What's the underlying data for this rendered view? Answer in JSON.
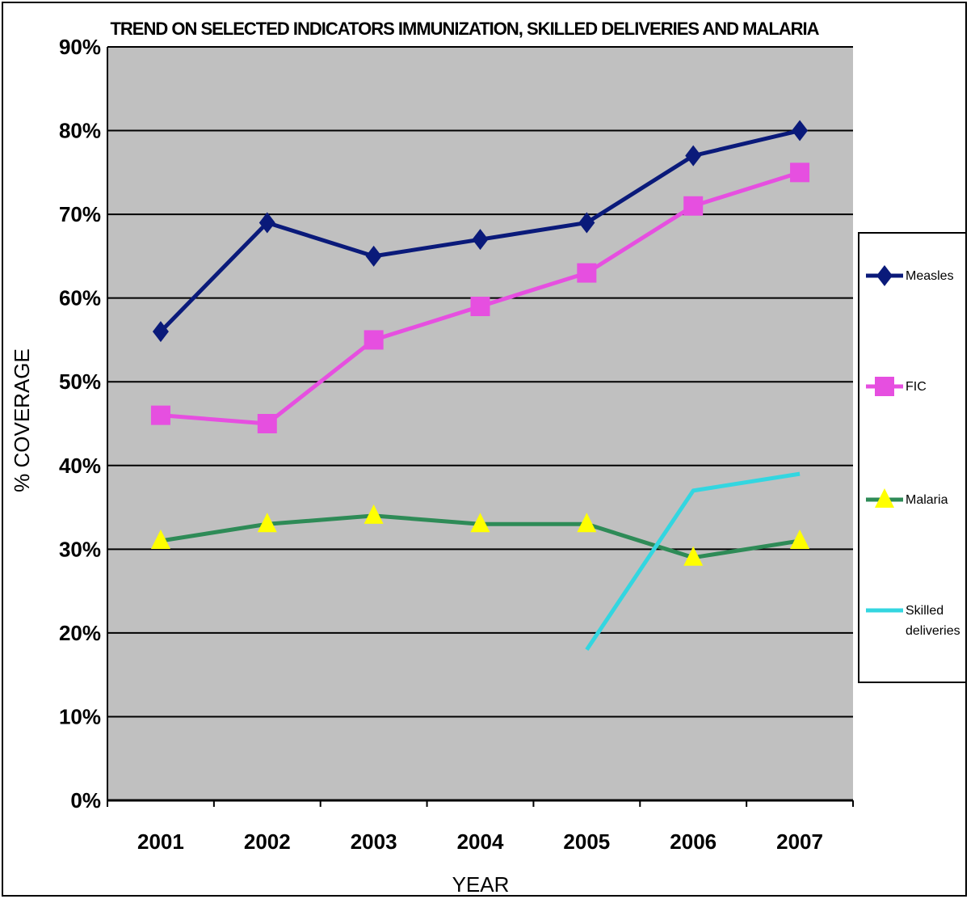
{
  "chart_data": {
    "type": "line",
    "title": "TREND ON SELECTED INDICATORS IMMUNIZATION, SKILLED DELIVERIES AND MALARIA",
    "xlabel": "YEAR",
    "ylabel": "% COVERAGE",
    "categories": [
      "2001",
      "2002",
      "2003",
      "2004",
      "2005",
      "2006",
      "2007"
    ],
    "y_ticks": [
      "0%",
      "10%",
      "20%",
      "30%",
      "40%",
      "50%",
      "60%",
      "70%",
      "80%",
      "90%"
    ],
    "ylim": [
      0,
      90
    ],
    "grid": "horizontal",
    "legend_position": "right",
    "plot_background": "#c0c0c0",
    "series": [
      {
        "name": "Measles",
        "color": "#0a1a7a",
        "marker": "diamond",
        "values": [
          56,
          69,
          65,
          67,
          69,
          77,
          80
        ]
      },
      {
        "name": "FIC",
        "color": "#e64fe0",
        "marker": "square",
        "values": [
          46,
          45,
          55,
          59,
          63,
          71,
          75
        ]
      },
      {
        "name": "Malaria",
        "color": "#2e8b57",
        "marker": "triangle",
        "marker_color": "#ffff00",
        "values": [
          31,
          33,
          34,
          33,
          33,
          29,
          31
        ]
      },
      {
        "name": "Skilled deliveries",
        "color": "#33d6e0",
        "marker": "none",
        "values": [
          null,
          null,
          null,
          null,
          18,
          37,
          39
        ]
      }
    ]
  }
}
